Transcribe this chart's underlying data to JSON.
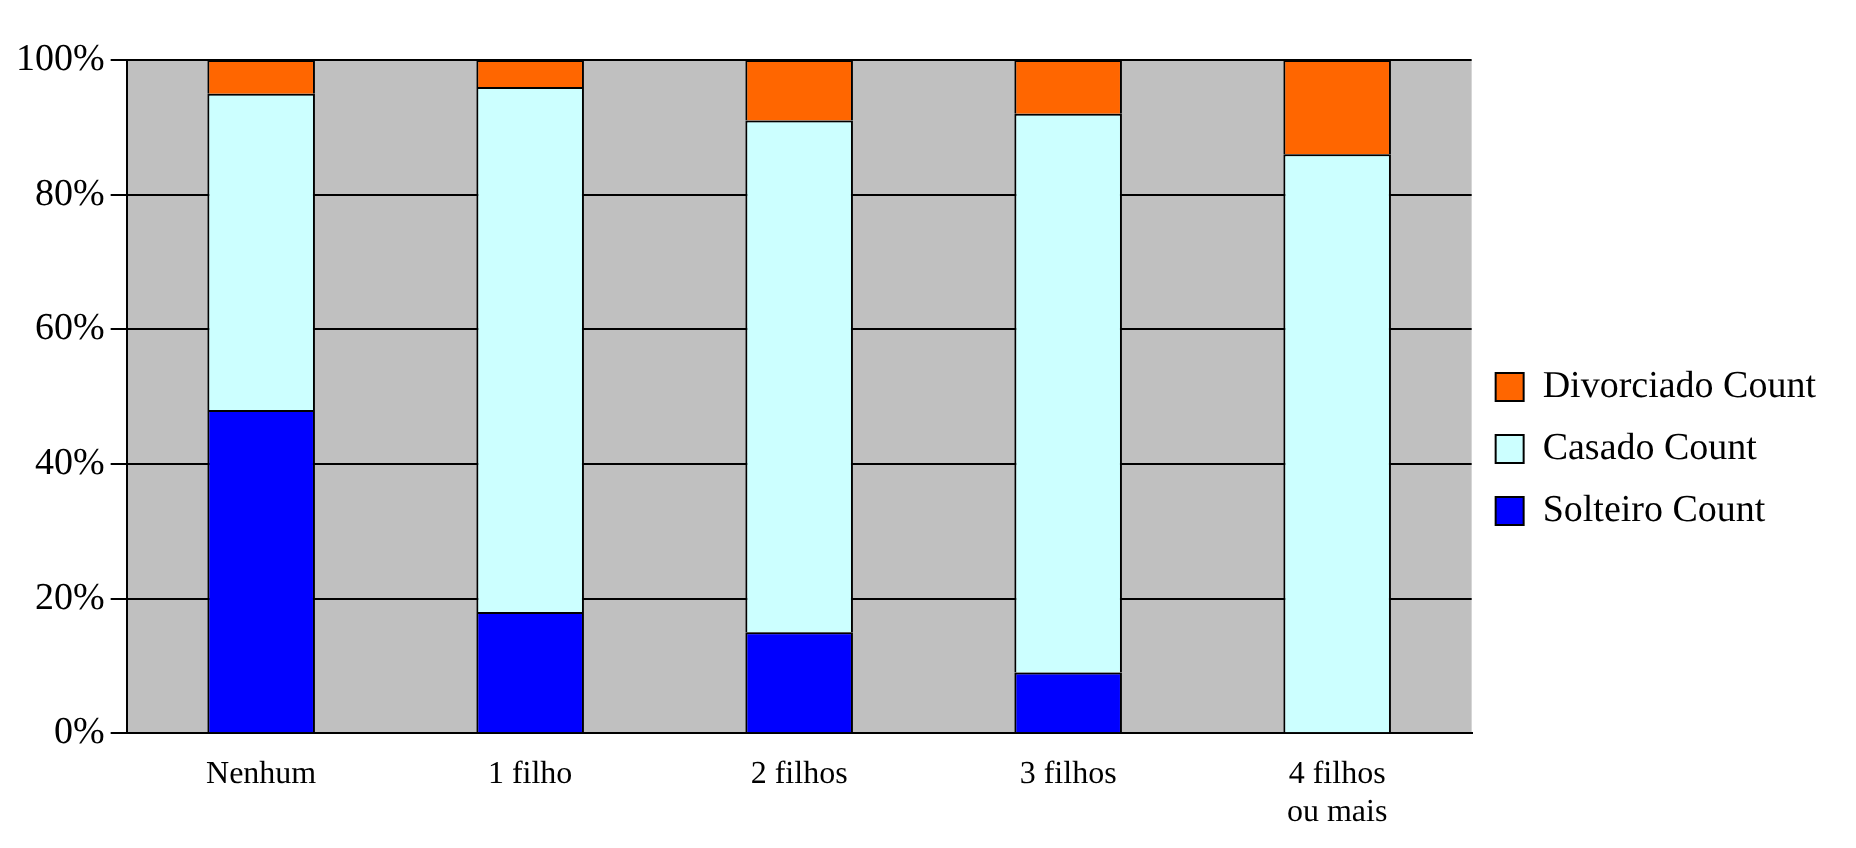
{
  "chart_data": {
    "type": "bar",
    "stacked": true,
    "categories": [
      "Nenhum",
      "1 filho",
      "2 filhos",
      "3 filhos",
      "4 filhos ou mais"
    ],
    "series": [
      {
        "name": "Solteiro Count",
        "color": "#0000ff",
        "values": [
          48,
          18,
          15,
          9,
          0
        ]
      },
      {
        "name": "Casado Count",
        "color": "#ccffff",
        "values": [
          47,
          78,
          76,
          83,
          86
        ]
      },
      {
        "name": "Divorciado Count",
        "color": "#ff6600",
        "values": [
          5,
          4,
          9,
          8,
          14
        ]
      }
    ],
    "ylim": [
      0,
      100
    ],
    "yticks": [
      {
        "value": 0,
        "label": "0%"
      },
      {
        "value": 20,
        "label": "20%"
      },
      {
        "value": 40,
        "label": "40%"
      },
      {
        "value": 60,
        "label": "60%"
      },
      {
        "value": 80,
        "label": "80%"
      },
      {
        "value": 100,
        "label": "100%"
      }
    ],
    "grid": "y",
    "legend": "right"
  }
}
